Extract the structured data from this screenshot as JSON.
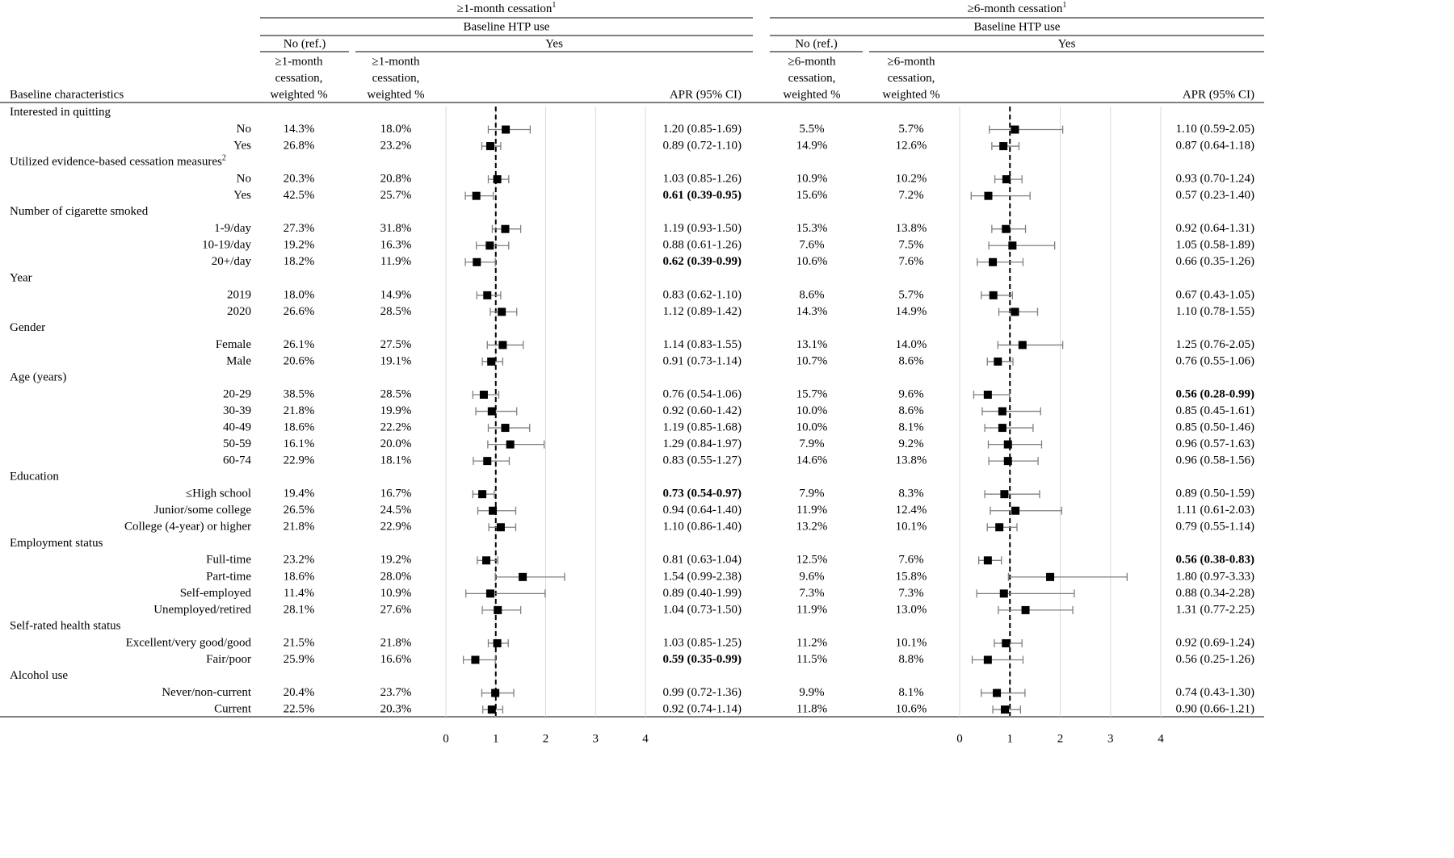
{
  "corner_header": "Baseline characteristics",
  "panels": [
    {
      "title": "≥1-month cessation",
      "note": "1",
      "subtitle": "Baseline HTP use",
      "no_header": "No (ref.)",
      "yes_header": "Yes",
      "no_col": [
        "≥1-month",
        "cessation,",
        "weighted %"
      ],
      "yes_col": [
        "≥1-month",
        "cessation,",
        "weighted %"
      ],
      "apr_header": "APR (95% CI)",
      "xlim": [
        0,
        4
      ],
      "xticks": [
        0,
        1,
        2,
        3,
        4
      ],
      "ref_line": 1,
      "grid": true
    },
    {
      "title": "≥6-month cessation",
      "note": "1",
      "subtitle": "Baseline HTP use",
      "no_header": "No (ref.)",
      "yes_header": "Yes",
      "no_col": [
        "≥6-month",
        "cessation,",
        "weighted %"
      ],
      "yes_col": [
        "≥6-month",
        "cessation,",
        "weighted %"
      ],
      "apr_header": "APR (95% CI)",
      "xlim": [
        0,
        4
      ],
      "xticks": [
        0,
        1,
        2,
        3,
        4
      ],
      "ref_line": 1,
      "grid": true
    }
  ],
  "groups": [
    {
      "label": "Interested in quitting",
      "items": [
        {
          "label": "No",
          "stats": [
            {
              "no": "14.3%",
              "yes": "18.0%",
              "est": 1.2,
              "lo": 0.85,
              "hi": 1.69,
              "ci": "1.20 (0.85-1.69)"
            },
            {
              "no": "5.5%",
              "yes": "5.7%",
              "est": 1.1,
              "lo": 0.59,
              "hi": 2.05,
              "ci": "1.10 (0.59-2.05)"
            }
          ]
        },
        {
          "label": "Yes",
          "stats": [
            {
              "no": "26.8%",
              "yes": "23.2%",
              "est": 0.89,
              "lo": 0.72,
              "hi": 1.1,
              "ci": "0.89 (0.72-1.10)"
            },
            {
              "no": "14.9%",
              "yes": "12.6%",
              "est": 0.87,
              "lo": 0.64,
              "hi": 1.18,
              "ci": "0.87 (0.64-1.18)"
            }
          ]
        }
      ]
    },
    {
      "label": "Utilized evidence-based cessation measures",
      "note": "2",
      "items": [
        {
          "label": "No",
          "stats": [
            {
              "no": "20.3%",
              "yes": "20.8%",
              "est": 1.03,
              "lo": 0.85,
              "hi": 1.26,
              "ci": "1.03 (0.85-1.26)"
            },
            {
              "no": "10.9%",
              "yes": "10.2%",
              "est": 0.93,
              "lo": 0.7,
              "hi": 1.24,
              "ci": "0.93 (0.70-1.24)"
            }
          ]
        },
        {
          "label": "Yes",
          "stats": [
            {
              "no": "42.5%",
              "yes": "25.7%",
              "est": 0.61,
              "lo": 0.39,
              "hi": 0.95,
              "ci": "0.61 (0.39-0.95)",
              "bold": true
            },
            {
              "no": "15.6%",
              "yes": "7.2%",
              "est": 0.57,
              "lo": 0.23,
              "hi": 1.4,
              "ci": "0.57 (0.23-1.40)"
            }
          ]
        }
      ]
    },
    {
      "label": "Number of cigarette smoked",
      "items": [
        {
          "label": "1-9/day",
          "stats": [
            {
              "no": "27.3%",
              "yes": "31.8%",
              "est": 1.19,
              "lo": 0.93,
              "hi": 1.5,
              "ci": "1.19 (0.93-1.50)"
            },
            {
              "no": "15.3%",
              "yes": "13.8%",
              "est": 0.92,
              "lo": 0.64,
              "hi": 1.31,
              "ci": "0.92 (0.64-1.31)"
            }
          ]
        },
        {
          "label": "10-19/day",
          "stats": [
            {
              "no": "19.2%",
              "yes": "16.3%",
              "est": 0.88,
              "lo": 0.61,
              "hi": 1.26,
              "ci": "0.88 (0.61-1.26)"
            },
            {
              "no": "7.6%",
              "yes": "7.5%",
              "est": 1.05,
              "lo": 0.58,
              "hi": 1.89,
              "ci": "1.05 (0.58-1.89)"
            }
          ]
        },
        {
          "label": "20+/day",
          "stats": [
            {
              "no": "18.2%",
              "yes": "11.9%",
              "est": 0.62,
              "lo": 0.39,
              "hi": 0.99,
              "ci": "0.62 (0.39-0.99)",
              "bold": true
            },
            {
              "no": "10.6%",
              "yes": "7.6%",
              "est": 0.66,
              "lo": 0.35,
              "hi": 1.26,
              "ci": "0.66 (0.35-1.26)"
            }
          ]
        }
      ]
    },
    {
      "label": "Year",
      "items": [
        {
          "label": "2019",
          "stats": [
            {
              "no": "18.0%",
              "yes": "14.9%",
              "est": 0.83,
              "lo": 0.62,
              "hi": 1.1,
              "ci": "0.83 (0.62-1.10)"
            },
            {
              "no": "8.6%",
              "yes": "5.7%",
              "est": 0.67,
              "lo": 0.43,
              "hi": 1.05,
              "ci": "0.67 (0.43-1.05)"
            }
          ]
        },
        {
          "label": "2020",
          "stats": [
            {
              "no": "26.6%",
              "yes": "28.5%",
              "est": 1.12,
              "lo": 0.89,
              "hi": 1.42,
              "ci": "1.12 (0.89-1.42)"
            },
            {
              "no": "14.3%",
              "yes": "14.9%",
              "est": 1.1,
              "lo": 0.78,
              "hi": 1.55,
              "ci": "1.10 (0.78-1.55)"
            }
          ]
        }
      ]
    },
    {
      "label": "Gender",
      "items": [
        {
          "label": "Female",
          "stats": [
            {
              "no": "26.1%",
              "yes": "27.5%",
              "est": 1.14,
              "lo": 0.83,
              "hi": 1.55,
              "ci": "1.14 (0.83-1.55)"
            },
            {
              "no": "13.1%",
              "yes": "14.0%",
              "est": 1.25,
              "lo": 0.76,
              "hi": 2.05,
              "ci": "1.25 (0.76-2.05)"
            }
          ]
        },
        {
          "label": "Male",
          "stats": [
            {
              "no": "20.6%",
              "yes": "19.1%",
              "est": 0.91,
              "lo": 0.73,
              "hi": 1.14,
              "ci": "0.91 (0.73-1.14)"
            },
            {
              "no": "10.7%",
              "yes": "8.6%",
              "est": 0.76,
              "lo": 0.55,
              "hi": 1.06,
              "ci": "0.76 (0.55-1.06)"
            }
          ]
        }
      ]
    },
    {
      "label": "Age (years)",
      "items": [
        {
          "label": "20-29",
          "stats": [
            {
              "no": "38.5%",
              "yes": "28.5%",
              "est": 0.76,
              "lo": 0.54,
              "hi": 1.06,
              "ci": "0.76 (0.54-1.06)"
            },
            {
              "no": "15.7%",
              "yes": "9.6%",
              "est": 0.56,
              "lo": 0.28,
              "hi": 0.99,
              "ci": "0.56 (0.28-0.99)",
              "bold": true
            }
          ]
        },
        {
          "label": "30-39",
          "stats": [
            {
              "no": "21.8%",
              "yes": "19.9%",
              "est": 0.92,
              "lo": 0.6,
              "hi": 1.42,
              "ci": "0.92 (0.60-1.42)"
            },
            {
              "no": "10.0%",
              "yes": "8.6%",
              "est": 0.85,
              "lo": 0.45,
              "hi": 1.61,
              "ci": "0.85 (0.45-1.61)"
            }
          ]
        },
        {
          "label": "40-49",
          "stats": [
            {
              "no": "18.6%",
              "yes": "22.2%",
              "est": 1.19,
              "lo": 0.85,
              "hi": 1.68,
              "ci": "1.19 (0.85-1.68)"
            },
            {
              "no": "10.0%",
              "yes": "8.1%",
              "est": 0.85,
              "lo": 0.5,
              "hi": 1.46,
              "ci": "0.85 (0.50-1.46)"
            }
          ]
        },
        {
          "label": "50-59",
          "stats": [
            {
              "no": "16.1%",
              "yes": "20.0%",
              "est": 1.29,
              "lo": 0.84,
              "hi": 1.97,
              "ci": "1.29 (0.84-1.97)"
            },
            {
              "no": "7.9%",
              "yes": "9.2%",
              "est": 0.96,
              "lo": 0.57,
              "hi": 1.63,
              "ci": "0.96 (0.57-1.63)"
            }
          ]
        },
        {
          "label": "60-74",
          "stats": [
            {
              "no": "22.9%",
              "yes": "18.1%",
              "est": 0.83,
              "lo": 0.55,
              "hi": 1.27,
              "ci": "0.83 (0.55-1.27)"
            },
            {
              "no": "14.6%",
              "yes": "13.8%",
              "est": 0.96,
              "lo": 0.58,
              "hi": 1.56,
              "ci": "0.96 (0.58-1.56)"
            }
          ]
        }
      ]
    },
    {
      "label": "Education",
      "items": [
        {
          "label": "≤High school",
          "stats": [
            {
              "no": "19.4%",
              "yes": "16.7%",
              "est": 0.73,
              "lo": 0.54,
              "hi": 0.97,
              "ci": "0.73 (0.54-0.97)",
              "bold": true
            },
            {
              "no": "7.9%",
              "yes": "8.3%",
              "est": 0.89,
              "lo": 0.5,
              "hi": 1.59,
              "ci": "0.89 (0.50-1.59)"
            }
          ]
        },
        {
          "label": "Junior/some college",
          "stats": [
            {
              "no": "26.5%",
              "yes": "24.5%",
              "est": 0.94,
              "lo": 0.64,
              "hi": 1.4,
              "ci": "0.94 (0.64-1.40)"
            },
            {
              "no": "11.9%",
              "yes": "12.4%",
              "est": 1.11,
              "lo": 0.61,
              "hi": 2.03,
              "ci": "1.11 (0.61-2.03)"
            }
          ]
        },
        {
          "label": "College (4-year) or higher",
          "stats": [
            {
              "no": "21.8%",
              "yes": "22.9%",
              "est": 1.1,
              "lo": 0.86,
              "hi": 1.4,
              "ci": "1.10 (0.86-1.40)"
            },
            {
              "no": "13.2%",
              "yes": "10.1%",
              "est": 0.79,
              "lo": 0.55,
              "hi": 1.14,
              "ci": "0.79 (0.55-1.14)"
            }
          ]
        }
      ]
    },
    {
      "label": "Employment status",
      "items": [
        {
          "label": "Full-time",
          "stats": [
            {
              "no": "23.2%",
              "yes": "19.2%",
              "est": 0.81,
              "lo": 0.63,
              "hi": 1.04,
              "ci": "0.81 (0.63-1.04)"
            },
            {
              "no": "12.5%",
              "yes": "7.6%",
              "est": 0.56,
              "lo": 0.38,
              "hi": 0.83,
              "ci": "0.56 (0.38-0.83)",
              "bold": true
            }
          ]
        },
        {
          "label": "Part-time",
          "stats": [
            {
              "no": "18.6%",
              "yes": "28.0%",
              "est": 1.54,
              "lo": 0.99,
              "hi": 2.38,
              "ci": "1.54 (0.99-2.38)"
            },
            {
              "no": "9.6%",
              "yes": "15.8%",
              "est": 1.8,
              "lo": 0.97,
              "hi": 3.33,
              "ci": "1.80 (0.97-3.33)"
            }
          ]
        },
        {
          "label": "Self-employed",
          "stats": [
            {
              "no": "11.4%",
              "yes": "10.9%",
              "est": 0.89,
              "lo": 0.4,
              "hi": 1.99,
              "ci": "0.89 (0.40-1.99)"
            },
            {
              "no": "7.3%",
              "yes": "7.3%",
              "est": 0.88,
              "lo": 0.34,
              "hi": 2.28,
              "ci": "0.88 (0.34-2.28)"
            }
          ]
        },
        {
          "label": "Unemployed/retired",
          "stats": [
            {
              "no": "28.1%",
              "yes": "27.6%",
              "est": 1.04,
              "lo": 0.73,
              "hi": 1.5,
              "ci": "1.04 (0.73-1.50)"
            },
            {
              "no": "11.9%",
              "yes": "13.0%",
              "est": 1.31,
              "lo": 0.77,
              "hi": 2.25,
              "ci": "1.31 (0.77-2.25)"
            }
          ]
        }
      ]
    },
    {
      "label": "Self-rated health status",
      "items": [
        {
          "label": "Excellent/very good/good",
          "stats": [
            {
              "no": "21.5%",
              "yes": "21.8%",
              "est": 1.03,
              "lo": 0.85,
              "hi": 1.25,
              "ci": "1.03 (0.85-1.25)"
            },
            {
              "no": "11.2%",
              "yes": "10.1%",
              "est": 0.92,
              "lo": 0.69,
              "hi": 1.24,
              "ci": "0.92 (0.69-1.24)"
            }
          ]
        },
        {
          "label": "Fair/poor",
          "stats": [
            {
              "no": "25.9%",
              "yes": "16.6%",
              "est": 0.59,
              "lo": 0.35,
              "hi": 0.99,
              "ci": "0.59 (0.35-0.99)",
              "bold": true
            },
            {
              "no": "11.5%",
              "yes": "8.8%",
              "est": 0.56,
              "lo": 0.25,
              "hi": 1.26,
              "ci": "0.56 (0.25-1.26)"
            }
          ]
        }
      ]
    },
    {
      "label": "Alcohol use",
      "items": [
        {
          "label": "Never/non-current",
          "stats": [
            {
              "no": "20.4%",
              "yes": "23.7%",
              "est": 0.99,
              "lo": 0.72,
              "hi": 1.36,
              "ci": "0.99 (0.72-1.36)"
            },
            {
              "no": "9.9%",
              "yes": "8.1%",
              "est": 0.74,
              "lo": 0.43,
              "hi": 1.3,
              "ci": "0.74 (0.43-1.30)"
            }
          ]
        },
        {
          "label": "Current",
          "stats": [
            {
              "no": "22.5%",
              "yes": "20.3%",
              "est": 0.92,
              "lo": 0.74,
              "hi": 1.14,
              "ci": "0.92 (0.74-1.14)"
            },
            {
              "no": "11.8%",
              "yes": "10.6%",
              "est": 0.9,
              "lo": 0.66,
              "hi": 1.21,
              "ci": "0.90 (0.66-1.21)"
            }
          ]
        }
      ]
    }
  ]
}
